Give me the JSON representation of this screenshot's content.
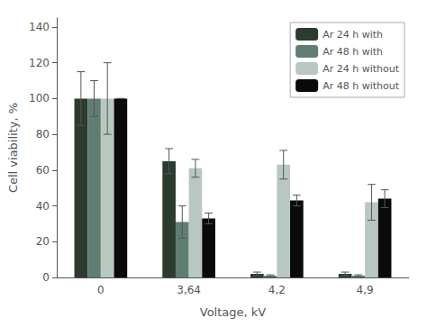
{
  "chart_data": {
    "type": "bar",
    "categories": [
      "0",
      "3,64",
      "4,2",
      "4,9"
    ],
    "series": [
      {
        "name": "Ar 24 h with",
        "color": "#2b3b2e",
        "values": [
          100,
          65,
          2,
          2
        ],
        "errors": [
          15,
          7,
          1,
          1
        ]
      },
      {
        "name": "Ar 48 h with",
        "color": "#607d72",
        "values": [
          100,
          31,
          1,
          1
        ],
        "errors": [
          10,
          9,
          0.5,
          0.5
        ]
      },
      {
        "name": "Ar 24 h without",
        "color": "#b8c8c0",
        "values": [
          100,
          61,
          63,
          42
        ],
        "errors": [
          20,
          5,
          8,
          10
        ]
      },
      {
        "name": "Ar 48 h without",
        "color": "#0a0a0a",
        "values": [
          100,
          33,
          43,
          44
        ],
        "errors": [
          0,
          3,
          3,
          5
        ]
      }
    ],
    "xlabel": "Voltage, kV",
    "ylabel": "Cell viability, %",
    "ylim": [
      0,
      145
    ],
    "yticks": [
      0,
      20,
      40,
      60,
      80,
      100,
      120,
      140
    ],
    "grid": false,
    "legend": "upper right"
  }
}
